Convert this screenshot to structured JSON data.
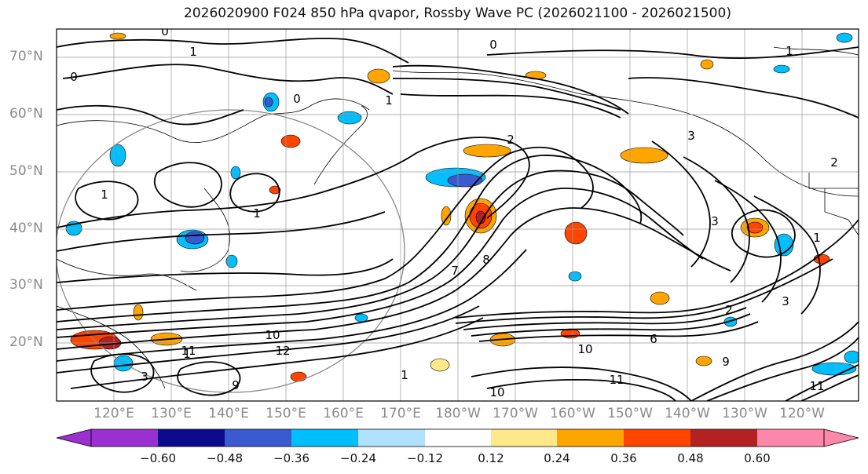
{
  "title": "2026020900 F024 850 hPa qvapor, Rossby Wave PC (2026021100 - 2026021500)",
  "lat_labels": [
    "70°N",
    "60°N",
    "50°N",
    "40°N",
    "30°N",
    "20°N"
  ],
  "lon_labels": [
    "120°E",
    "130°E",
    "140°E",
    "150°E",
    "160°E",
    "170°E",
    "180°W",
    "170°W",
    "160°W",
    "150°W",
    "140°W",
    "130°W",
    "120°W"
  ],
  "colorbar": {
    "colors": [
      "#9b30d0",
      "#0a0a8a",
      "#3a5ad0",
      "#00bfff",
      "#b0e2ff",
      "#ffffff",
      "#ffe88a",
      "#ffa500",
      "#ff4500",
      "#b22222",
      "#ff88aa"
    ],
    "tick_labels": [
      "−0.60",
      "−0.48",
      "−0.36",
      "−0.24",
      "−0.12",
      "0.12",
      "0.24",
      "0.36",
      "0.48",
      "0.60"
    ]
  },
  "contour_labels": [
    "0",
    "1",
    "0",
    "0",
    "1",
    "0",
    "1",
    "1",
    "3",
    "10",
    "1",
    "1",
    "2",
    "3",
    "8",
    "12",
    "11",
    "1",
    "2",
    "9",
    "10",
    "11",
    "10",
    "6",
    "3",
    "2",
    "1",
    "3",
    "7",
    "11",
    "9"
  ]
}
